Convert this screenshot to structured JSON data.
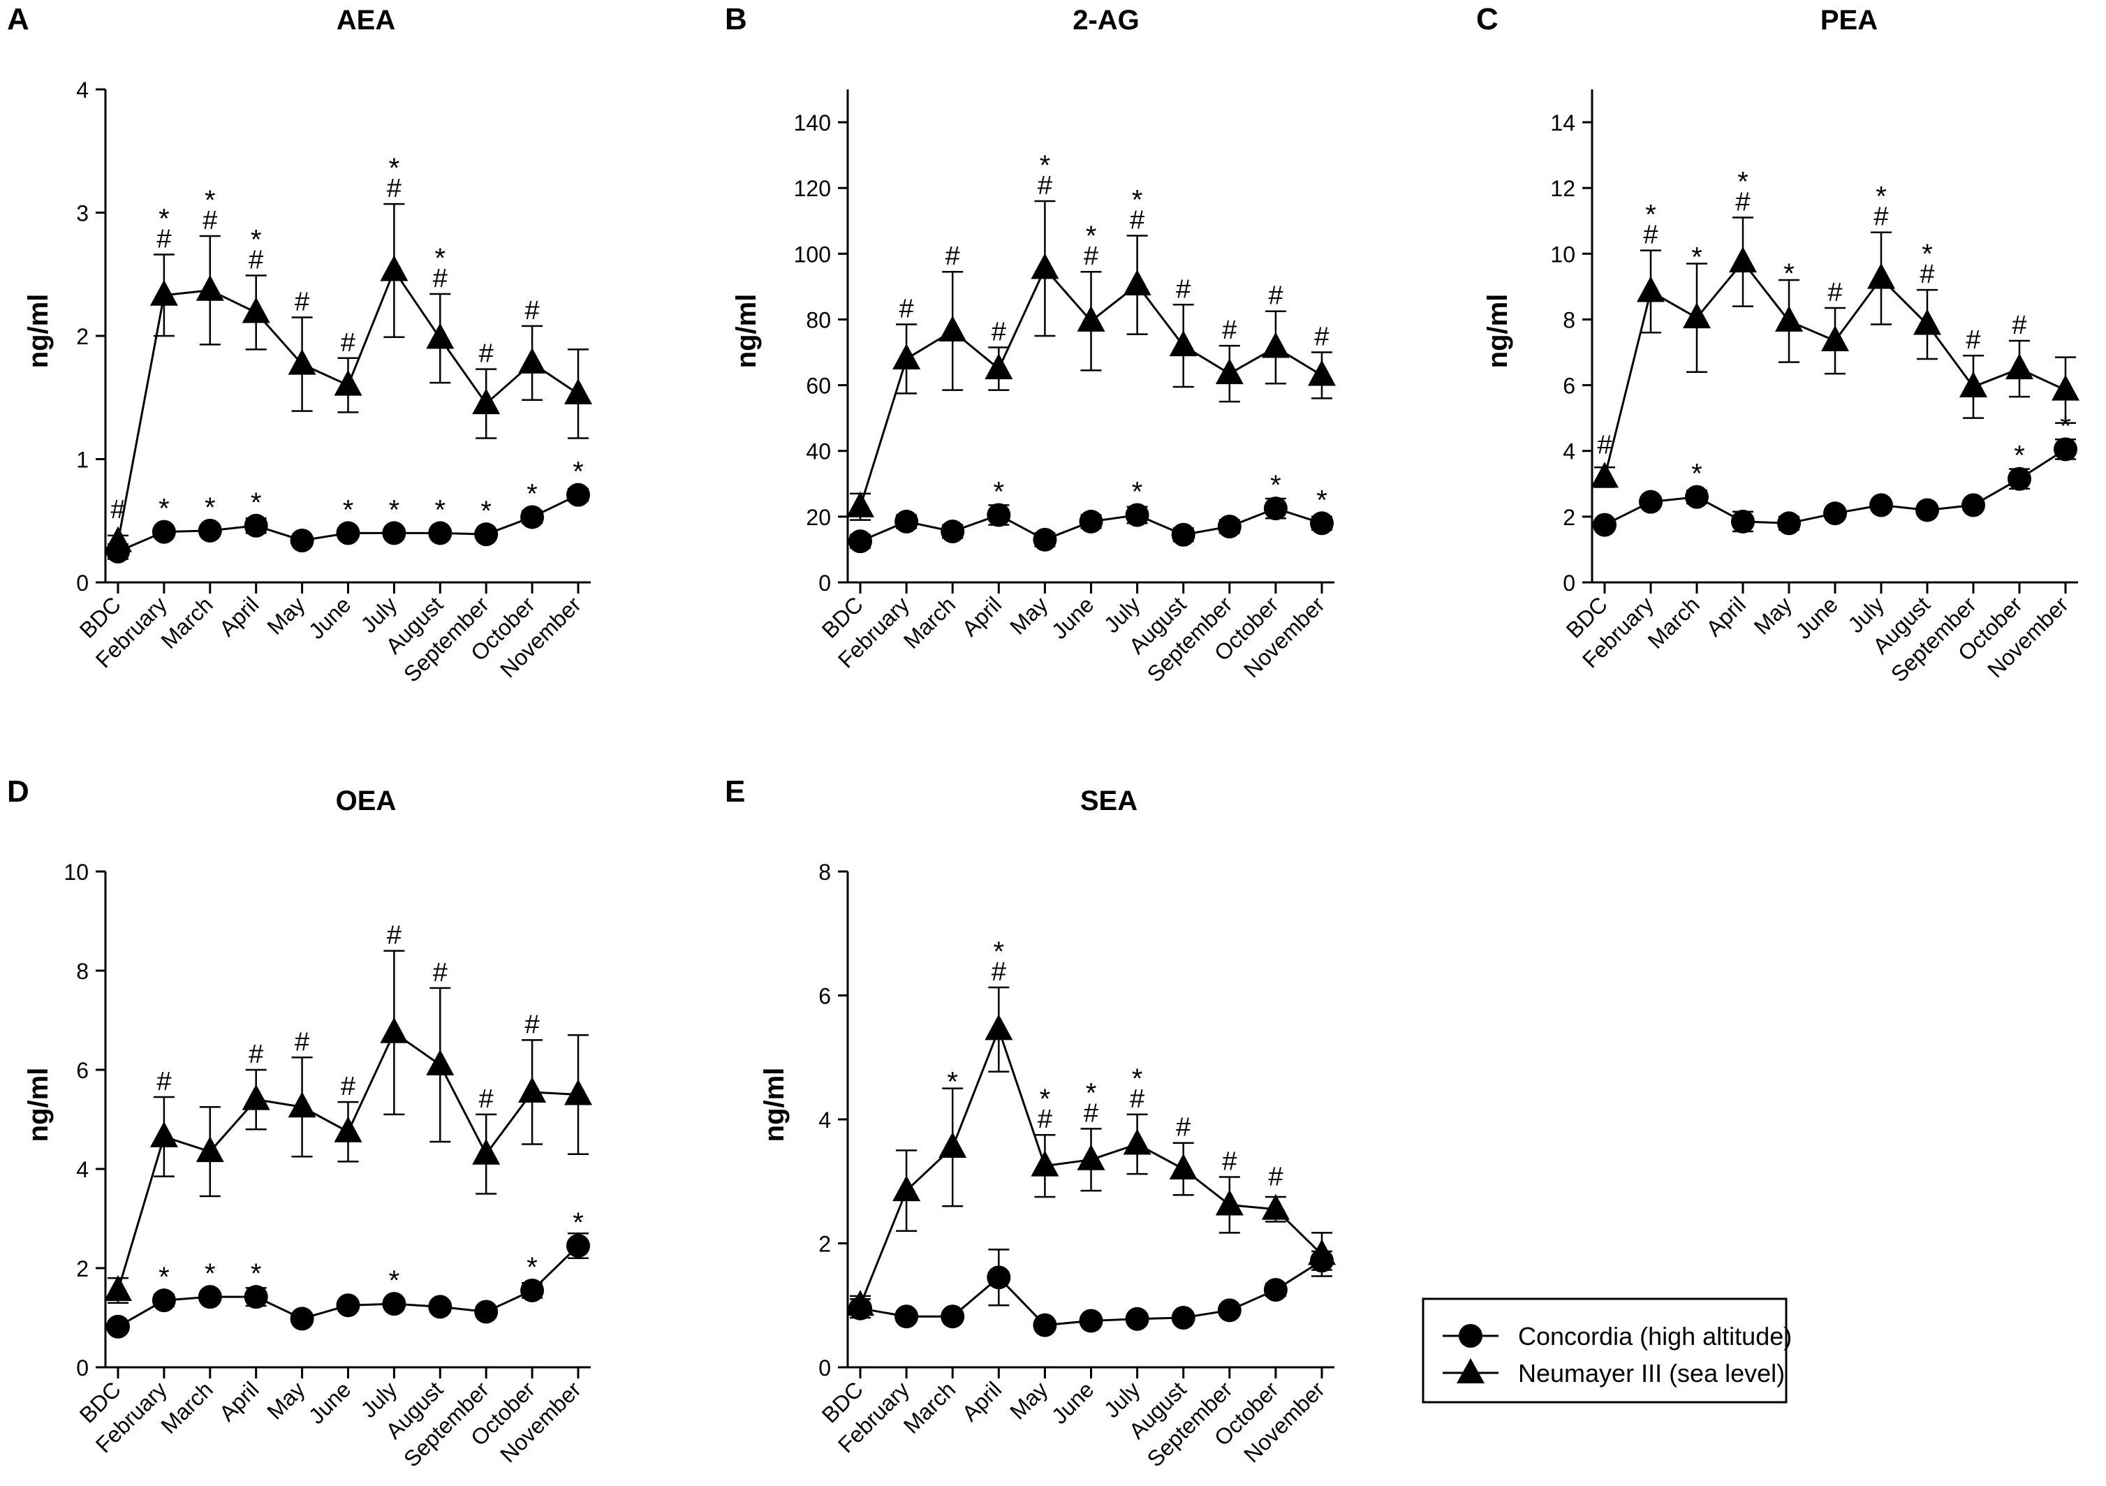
{
  "months": [
    "BDC",
    "February",
    "March",
    "April",
    "May",
    "June",
    "July",
    "August",
    "September",
    "October",
    "November"
  ],
  "chart_data": [
    {
      "type": "line",
      "panel": "A",
      "title": "AEA",
      "ylabel": "ng/ml",
      "ylim": [
        0,
        4
      ],
      "yticks": [
        0,
        1,
        2,
        3,
        4
      ],
      "series": [
        {
          "name": "Concordia (high altitude)",
          "marker": "circle",
          "values": [
            0.25,
            0.41,
            0.42,
            0.46,
            0.34,
            0.4,
            0.4,
            0.4,
            0.39,
            0.53,
            0.71
          ],
          "errors": [
            0.06,
            0.04,
            0.04,
            0.06,
            0.03,
            0.03,
            0.03,
            0.03,
            0.03,
            0.05,
            0.05
          ],
          "annotations": [
            "",
            "*",
            "*",
            "*",
            "",
            "*",
            "*",
            "*",
            "*",
            "*",
            "*"
          ]
        },
        {
          "name": "Neumayer III (sea level)",
          "marker": "triangle",
          "values": [
            0.33,
            2.33,
            2.37,
            2.19,
            1.77,
            1.6,
            2.53,
            1.98,
            1.45,
            1.78,
            1.53
          ],
          "errors": [
            0.05,
            0.33,
            0.44,
            0.3,
            0.38,
            0.22,
            0.54,
            0.36,
            0.28,
            0.3,
            0.36
          ],
          "annotations": [
            "#",
            "*#",
            "*#",
            "*#",
            "#",
            "#",
            "*#",
            "*#",
            "#",
            "#",
            ""
          ]
        }
      ]
    },
    {
      "type": "line",
      "panel": "B",
      "title": "2-AG",
      "ylabel": "ng/ml",
      "ylim": [
        0,
        150
      ],
      "yticks": [
        0,
        20,
        40,
        60,
        80,
        100,
        120,
        140
      ],
      "series": [
        {
          "name": "Concordia (high altitude)",
          "marker": "circle",
          "values": [
            12.5,
            18.5,
            15.5,
            20.5,
            13.0,
            18.5,
            20.5,
            14.5,
            17.0,
            22.5,
            18.0
          ],
          "errors": [
            2.0,
            2.0,
            2.0,
            3.0,
            2.0,
            2.0,
            2.5,
            2.0,
            2.0,
            3.0,
            2.0
          ],
          "annotations": [
            "",
            "",
            "",
            "*",
            "",
            "",
            "*",
            "",
            "",
            "*",
            "*"
          ]
        },
        {
          "name": "Neumayer III (sea level)",
          "marker": "triangle",
          "values": [
            23.0,
            68.0,
            76.5,
            65.0,
            95.5,
            79.5,
            90.5,
            72.0,
            63.5,
            71.5,
            63.0
          ],
          "errors": [
            4.0,
            10.5,
            18.0,
            6.5,
            20.5,
            15.0,
            15.0,
            12.5,
            8.5,
            11.0,
            7.0
          ],
          "annotations": [
            "",
            "#",
            "#",
            "#",
            "*#",
            "*#",
            "*#",
            "#",
            "#",
            "#",
            "#"
          ]
        }
      ]
    },
    {
      "type": "line",
      "panel": "C",
      "title": "PEA",
      "ylabel": "ng/ml",
      "ylim": [
        0,
        15
      ],
      "yticks": [
        0,
        2,
        4,
        6,
        8,
        10,
        12,
        14
      ],
      "series": [
        {
          "name": "Concordia (high altitude)",
          "marker": "circle",
          "values": [
            1.75,
            2.45,
            2.6,
            1.85,
            1.8,
            2.1,
            2.35,
            2.2,
            2.35,
            3.15,
            4.05
          ],
          "errors": [
            0.15,
            0.15,
            0.2,
            0.3,
            0.2,
            0.15,
            0.15,
            0.15,
            0.15,
            0.3,
            0.3
          ],
          "annotations": [
            "",
            "",
            "*",
            "",
            "",
            "",
            "",
            "",
            "",
            "*",
            "*"
          ]
        },
        {
          "name": "Neumayer III (sea level)",
          "marker": "triangle",
          "values": [
            3.2,
            8.85,
            8.05,
            9.75,
            7.95,
            7.35,
            9.25,
            7.85,
            5.95,
            6.5,
            5.85
          ],
          "errors": [
            0.3,
            1.25,
            1.65,
            1.35,
            1.25,
            1.0,
            1.4,
            1.05,
            0.95,
            0.85,
            1.0
          ],
          "annotations": [
            "#",
            "*#",
            "*",
            "*#",
            "*",
            "#",
            "*#",
            "*#",
            "#",
            "#",
            ""
          ]
        }
      ]
    },
    {
      "type": "line",
      "panel": "D",
      "title": "OEA",
      "ylabel": "ng/ml",
      "ylim": [
        0,
        10
      ],
      "yticks": [
        0,
        2,
        4,
        6,
        8,
        10
      ],
      "series": [
        {
          "name": "Concordia (high altitude)",
          "marker": "circle",
          "values": [
            0.82,
            1.35,
            1.42,
            1.42,
            0.98,
            1.25,
            1.28,
            1.22,
            1.12,
            1.55,
            2.45
          ],
          "errors": [
            0.1,
            0.12,
            0.1,
            0.18,
            0.1,
            0.1,
            0.1,
            0.1,
            0.1,
            0.15,
            0.25
          ],
          "annotations": [
            "",
            "*",
            "*",
            "*",
            "",
            "",
            "*",
            "",
            "",
            "*",
            "*"
          ]
        },
        {
          "name": "Neumayer III (sea level)",
          "marker": "triangle",
          "values": [
            1.55,
            4.65,
            4.35,
            5.4,
            5.25,
            4.75,
            6.75,
            6.1,
            4.3,
            5.55,
            5.5
          ],
          "errors": [
            0.25,
            0.8,
            0.9,
            0.6,
            1.0,
            0.6,
            1.65,
            1.55,
            0.8,
            1.05,
            1.2
          ],
          "annotations": [
            "",
            "#",
            "",
            "#",
            "#",
            "#",
            "#",
            "#",
            "#",
            "#",
            ""
          ]
        }
      ]
    },
    {
      "type": "line",
      "panel": "E",
      "title": "SEA",
      "ylabel": "ng/ml",
      "ylim": [
        0,
        8
      ],
      "yticks": [
        0,
        2,
        4,
        6,
        8
      ],
      "series": [
        {
          "name": "Concordia (high altitude)",
          "marker": "circle",
          "values": [
            0.95,
            0.82,
            0.82,
            1.45,
            0.68,
            0.75,
            0.78,
            0.8,
            0.92,
            1.25,
            1.72
          ],
          "errors": [
            0.15,
            0.08,
            0.08,
            0.45,
            0.05,
            0.05,
            0.05,
            0.05,
            0.05,
            0.1,
            0.15
          ],
          "annotations": [
            "",
            "",
            "",
            "",
            "",
            "",
            "",
            "",
            "",
            "",
            ""
          ]
        },
        {
          "name": "Neumayer III (sea level)",
          "marker": "triangle",
          "values": [
            1.0,
            2.85,
            3.55,
            5.45,
            3.25,
            3.35,
            3.6,
            3.2,
            2.62,
            2.55,
            1.82
          ],
          "errors": [
            0.15,
            0.65,
            0.95,
            0.68,
            0.5,
            0.5,
            0.48,
            0.42,
            0.45,
            0.2,
            0.35
          ],
          "annotations": [
            "",
            "",
            "*",
            "*#",
            "*#",
            "*#",
            "*#",
            "#",
            "#",
            "#",
            ""
          ]
        }
      ]
    }
  ],
  "legend": {
    "position": "bottom-right",
    "entries": [
      {
        "label": "Concordia (high altitude)",
        "marker": "circle"
      },
      {
        "label": "Neumayer III (sea level)",
        "marker": "triangle"
      }
    ]
  }
}
